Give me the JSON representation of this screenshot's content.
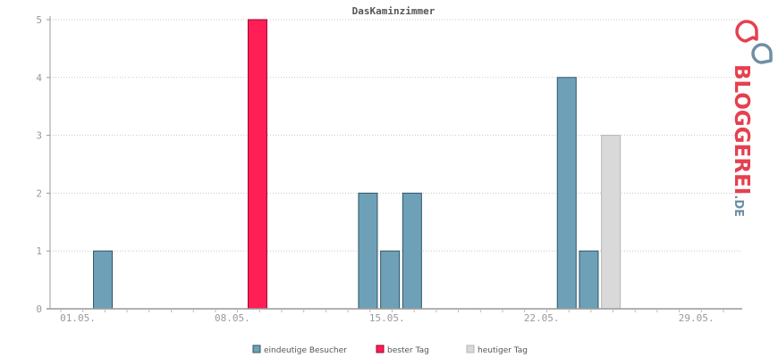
{
  "chart_data": {
    "type": "bar",
    "title": "DasKaminzimmer",
    "xlabel": "",
    "ylabel": "",
    "ylim": [
      0,
      5
    ],
    "yticks": [
      0,
      1,
      2,
      3,
      4,
      5
    ],
    "grid": true,
    "legend_placement": "bottom",
    "x_tick_labels": [
      {
        "day": 1,
        "label": "01.05."
      },
      {
        "day": 8,
        "label": "08.05."
      },
      {
        "day": 15,
        "label": "15.05."
      },
      {
        "day": 22,
        "label": "22.05."
      },
      {
        "day": 29,
        "label": "29.05."
      }
    ],
    "days_in_month": 31,
    "series": [
      {
        "name": "eindeutige Besucher",
        "color": "#6ea1b8",
        "border": "#2e5566"
      },
      {
        "name": "bester Tag",
        "color": "#ff1e56",
        "border": "#a3002c"
      },
      {
        "name": "heutiger Tag",
        "color": "#d9d9d9",
        "border": "#b5b5b5"
      }
    ],
    "bars": [
      {
        "day": 2,
        "value": 1,
        "series": 0
      },
      {
        "day": 9,
        "value": 5,
        "series": 1
      },
      {
        "day": 14,
        "value": 2,
        "series": 0
      },
      {
        "day": 15,
        "value": 1,
        "series": 0
      },
      {
        "day": 16,
        "value": 2,
        "series": 0
      },
      {
        "day": 23,
        "value": 4,
        "series": 0
      },
      {
        "day": 24,
        "value": 1,
        "series": 0
      },
      {
        "day": 25,
        "value": 3,
        "series": 2
      }
    ]
  },
  "logo": {
    "text_main": "BLOGGEREI",
    "text_suffix": ".DE",
    "color_main": "#e5404f",
    "color_suffix": "#6e8fa6",
    "icon": "speech-bubbles-icon"
  }
}
